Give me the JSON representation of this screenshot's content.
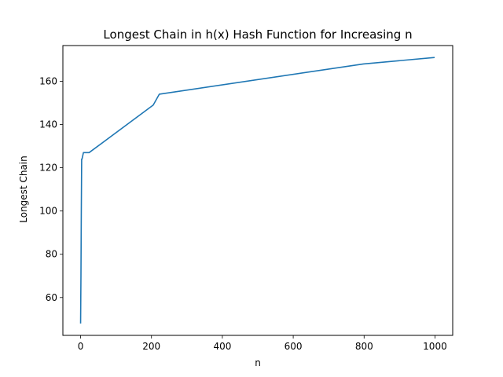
{
  "chart_data": {
    "type": "line",
    "title": "Longest Chain in h(x) Hash Function for Increasing n",
    "xlabel": "n",
    "ylabel": "Longest Chain",
    "xlim": [
      -50,
      1050
    ],
    "ylim": [
      42.5,
      176.5
    ],
    "xticks": [
      0,
      200,
      400,
      600,
      800,
      1000
    ],
    "yticks": [
      60,
      80,
      100,
      120,
      140,
      160
    ],
    "grid": false,
    "line_color": "#1f77b4",
    "series": [
      {
        "x": [
          0,
          1,
          1,
          2,
          2,
          3,
          3,
          4,
          4,
          8,
          8,
          24,
          24,
          205,
          205,
          222,
          222,
          798,
          798,
          999
        ],
        "y": [
          48,
          70,
          70,
          100,
          100,
          124,
          124,
          124,
          124,
          127,
          127,
          127,
          127,
          149,
          149,
          154,
          154,
          168,
          168,
          171
        ]
      }
    ]
  }
}
